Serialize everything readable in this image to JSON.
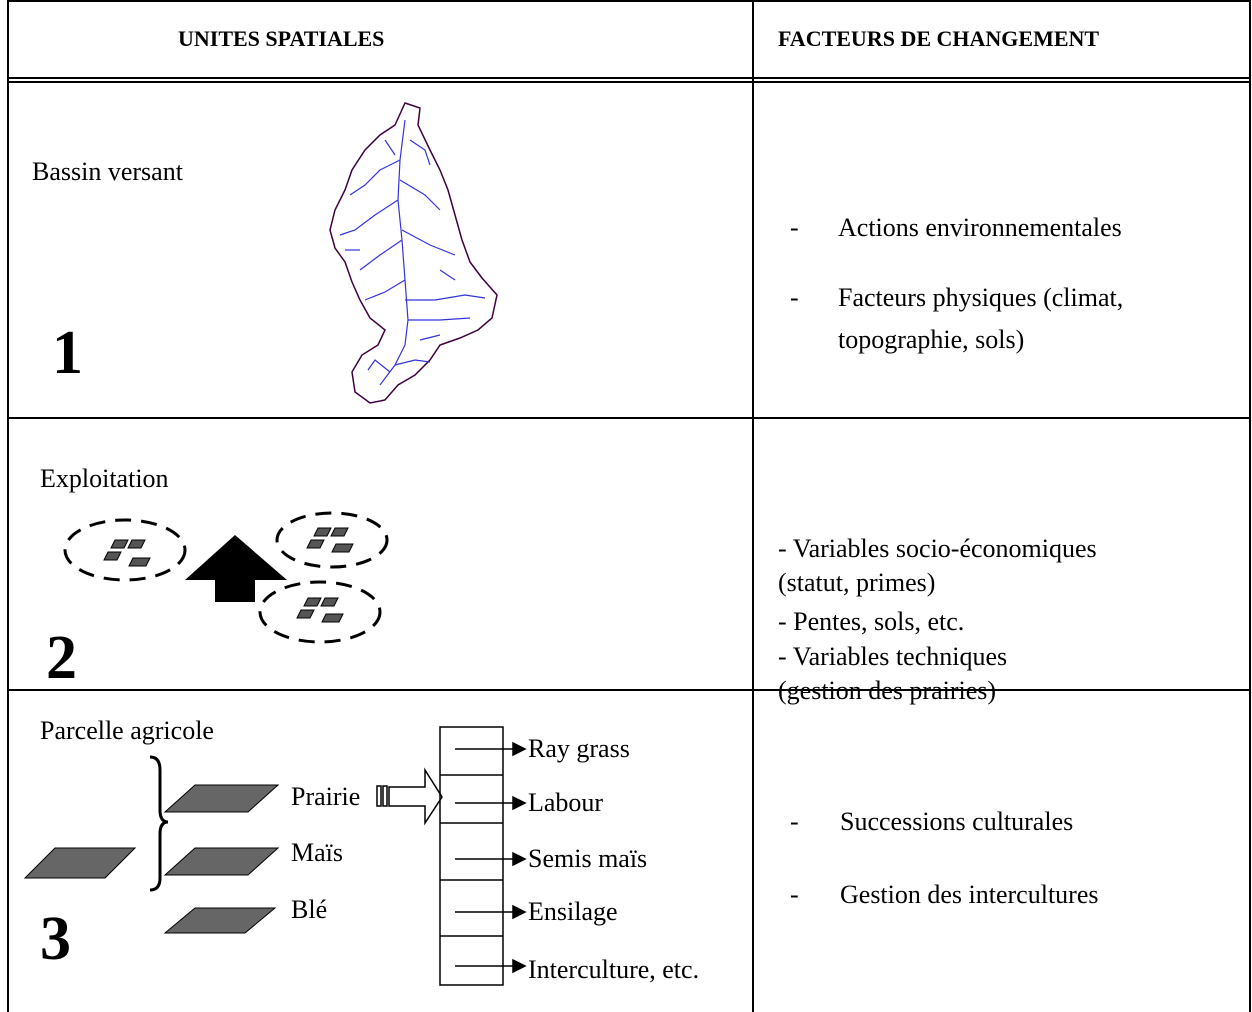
{
  "header": {
    "col1": "UNITES SPATIALES",
    "col2": "FACTEURS DE CHANGEMENT"
  },
  "rows": [
    {
      "label": "Bassin versant",
      "number": "1",
      "factors": [
        {
          "marker": "-",
          "text": "Actions environnementales"
        },
        {
          "marker": "-",
          "text": "Facteurs physiques (climat, topographie, sols)"
        }
      ]
    },
    {
      "label": "Exploitation",
      "number": "2",
      "factor_lines": [
        "- Variables socio-économiques",
        "(statut, primes)",
        "- Pentes, sols, etc.",
        "- Variables  techniques",
        "(gestion des prairies)"
      ]
    },
    {
      "label": "Parcelle agricole",
      "number": "3",
      "crops": [
        "Prairie",
        "Maïs",
        "Blé"
      ],
      "sequence": [
        "Ray grass",
        "Labour",
        "Semis maïs",
        "Ensilage",
        "Interculture, etc."
      ],
      "factors": [
        {
          "marker": "-",
          "text": "Successions culturales"
        },
        {
          "marker": "-",
          "text": "Gestion des intercultures"
        }
      ]
    }
  ]
}
